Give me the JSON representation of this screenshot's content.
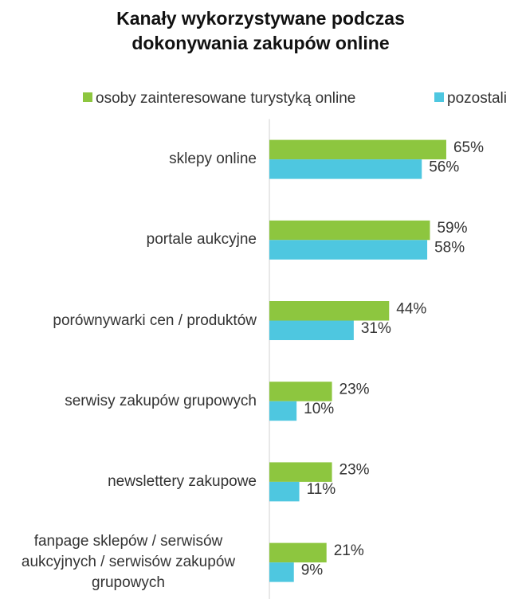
{
  "chart_data": {
    "type": "bar",
    "orientation": "horizontal",
    "title": "Kanały wykorzystywane podczas dokonywania zakupów online",
    "categories": [
      "sklepy online",
      "portale aukcyjne",
      "porównywarki cen / produktów",
      "serwisy zakupów grupowych",
      "newslettery zakupowe",
      "fanpage sklepów / serwisów aukcyjnych / serwisów zakupów grupowych"
    ],
    "series": [
      {
        "name": "osoby zainteresowane turystyką online",
        "color": "#8dc63f",
        "values": [
          65,
          59,
          44,
          23,
          23,
          21
        ],
        "value_labels": [
          "65%",
          "59%",
          "44%",
          "23%",
          "23%",
          "21%"
        ]
      },
      {
        "name": "pozostali",
        "color": "#4ec7e0",
        "values": [
          56,
          58,
          31,
          10,
          11,
          9
        ],
        "value_labels": [
          "56%",
          "58%",
          "31%",
          "10%",
          "11%",
          "9%"
        ]
      }
    ],
    "xlim": [
      0,
      100
    ],
    "legend": "top"
  }
}
